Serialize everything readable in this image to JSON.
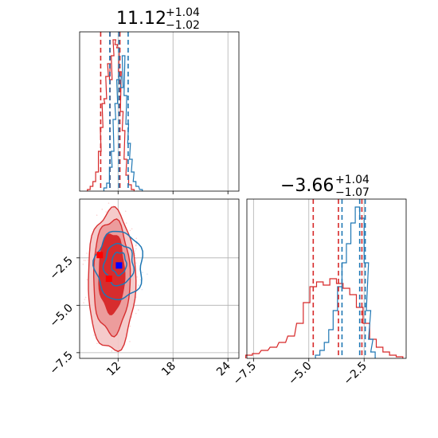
{
  "chart_data": [
    {
      "panel": "histogram-param-1",
      "type": "histogram",
      "title": {
        "value": "11.12",
        "plus": "+1.04",
        "minus": "−1.02"
      },
      "xlim": [
        7.8,
        25.2
      ],
      "grid": true,
      "series": [
        {
          "color": "#d62728",
          "values": [
            [
              8.8,
              0.01
            ],
            [
              9.1,
              0.03
            ],
            [
              9.4,
              0.06
            ],
            [
              9.7,
              0.12
            ],
            [
              10.0,
              0.25
            ],
            [
              10.2,
              0.4
            ],
            [
              10.4,
              0.55
            ],
            [
              10.6,
              0.58
            ],
            [
              10.8,
              0.72
            ],
            [
              11.0,
              0.8
            ],
            [
              11.2,
              0.7
            ],
            [
              11.4,
              0.85
            ],
            [
              11.6,
              0.95
            ],
            [
              11.8,
              0.92
            ],
            [
              12.0,
              0.9
            ],
            [
              12.2,
              0.75
            ],
            [
              12.4,
              0.5
            ],
            [
              12.6,
              0.38
            ],
            [
              12.8,
              0.2
            ],
            [
              13.0,
              0.1
            ],
            [
              13.3,
              0.04
            ],
            [
              13.6,
              0.01
            ]
          ]
        },
        {
          "color": "#1f77b4",
          "values": [
            [
              10.6,
              0.02
            ],
            [
              10.9,
              0.05
            ],
            [
              11.2,
              0.15
            ],
            [
              11.4,
              0.25
            ],
            [
              11.6,
              0.45
            ],
            [
              11.8,
              0.55
            ],
            [
              12.0,
              0.7
            ],
            [
              12.2,
              0.72
            ],
            [
              12.4,
              0.65
            ],
            [
              12.6,
              0.85
            ],
            [
              12.8,
              0.6
            ],
            [
              13.0,
              0.42
            ],
            [
              13.2,
              0.3
            ],
            [
              13.4,
              0.2
            ],
            [
              13.6,
              0.12
            ],
            [
              13.8,
              0.06
            ],
            [
              14.1,
              0.03
            ],
            [
              14.5,
              0.01
            ]
          ]
        }
      ],
      "quantile_lines": [
        {
          "color": "#d62728",
          "x": [
            10.1,
            11.12,
            12.2
          ]
        },
        {
          "color": "#1f77b4",
          "x": [
            11.1,
            12.1,
            13.1
          ]
        }
      ]
    },
    {
      "panel": "histogram-param-2",
      "type": "histogram",
      "title": {
        "value": "−3.66",
        "plus": "+1.04",
        "minus": "−1.07"
      },
      "xlim": [
        -7.8,
        -0.6
      ],
      "xticks": [
        -7.5,
        -5.0,
        -2.5
      ],
      "xtick_labels": [
        "−7.5",
        "−5.0",
        "−2.5"
      ],
      "grid": true,
      "series": [
        {
          "color": "#d62728",
          "values": [
            [
              -7.7,
              0.02
            ],
            [
              -7.4,
              0.03
            ],
            [
              -7.0,
              0.05
            ],
            [
              -6.6,
              0.07
            ],
            [
              -6.2,
              0.1
            ],
            [
              -5.8,
              0.14
            ],
            [
              -5.4,
              0.22
            ],
            [
              -5.1,
              0.35
            ],
            [
              -4.8,
              0.45
            ],
            [
              -4.5,
              0.48
            ],
            [
              -4.2,
              0.46
            ],
            [
              -3.9,
              0.5
            ],
            [
              -3.6,
              0.47
            ],
            [
              -3.3,
              0.44
            ],
            [
              -3.0,
              0.4
            ],
            [
              -2.7,
              0.32
            ],
            [
              -2.4,
              0.22
            ],
            [
              -2.1,
              0.12
            ],
            [
              -1.8,
              0.07
            ],
            [
              -1.5,
              0.04
            ],
            [
              -1.2,
              0.02
            ],
            [
              -0.9,
              0.01
            ]
          ]
        },
        {
          "color": "#1f77b4",
          "values": [
            [
              -4.6,
              0.02
            ],
            [
              -4.4,
              0.05
            ],
            [
              -4.2,
              0.1
            ],
            [
              -4.0,
              0.18
            ],
            [
              -3.8,
              0.3
            ],
            [
              -3.6,
              0.45
            ],
            [
              -3.4,
              0.6
            ],
            [
              -3.2,
              0.72
            ],
            [
              -3.0,
              0.85
            ],
            [
              -2.8,
              0.95
            ],
            [
              -2.6,
              0.88
            ],
            [
              -2.4,
              0.6
            ],
            [
              -2.3,
              0.3
            ],
            [
              -2.2,
              0.12
            ],
            [
              -2.1,
              0.04
            ]
          ]
        }
      ],
      "quantile_lines": [
        {
          "color": "#d62728",
          "x": [
            -4.8,
            -3.66,
            -2.6
          ]
        },
        {
          "color": "#1f77b4",
          "x": [
            -3.5,
            -2.7,
            -2.45
          ]
        }
      ]
    },
    {
      "panel": "joint-2d",
      "type": "contour",
      "xlim": [
        7.8,
        25.2
      ],
      "ylim": [
        -7.8,
        0.6
      ],
      "xticks": [
        12,
        18,
        24
      ],
      "xtick_labels": [
        "12",
        "18",
        "24"
      ],
      "yticks": [
        -7.5,
        -5.0,
        -2.5
      ],
      "ytick_labels": [
        "−7.5",
        "−5.0",
        "−2.5"
      ],
      "grid": true,
      "series": [
        {
          "color": "#d62728",
          "filled": true,
          "contours": [
            {
              "cx": 11.3,
              "cy": -3.3,
              "rx": 1.4,
              "ry": 2.1
            },
            {
              "cx": 11.3,
              "cy": -3.5,
              "rx": 2.0,
              "ry": 3.0
            },
            {
              "cx": 11.3,
              "cy": -3.7,
              "rx": 2.6,
              "ry": 3.7
            }
          ],
          "truth": {
            "x": 10.0,
            "y": -2.35
          },
          "estimate": {
            "x": 11.0,
            "y": -3.6
          }
        },
        {
          "color": "#1f77b4",
          "filled": false,
          "contours": [
            {
              "cx": 12.1,
              "cy": -2.8,
              "rx": 0.8,
              "ry": 0.6
            },
            {
              "cx": 12.1,
              "cy": -2.85,
              "rx": 1.6,
              "ry": 1.1
            },
            {
              "cx": 12.1,
              "cy": -2.9,
              "rx": 2.6,
              "ry": 1.8
            }
          ],
          "estimate": {
            "x": 12.1,
            "y": -2.9
          }
        }
      ]
    }
  ]
}
